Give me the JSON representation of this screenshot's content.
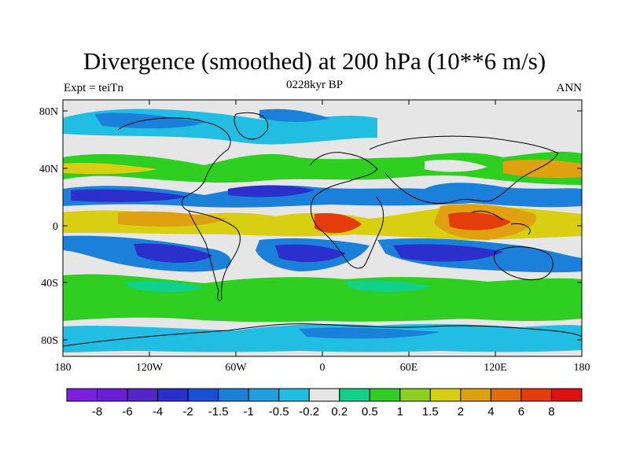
{
  "title": "Divergence (smoothed) at 200 hPa (10**6 m/s)",
  "left_label": "Expt = teiTn",
  "center_label": "0228kyr BP",
  "right_label": "ANN",
  "y_ticks": [
    "80N",
    "40N",
    "0",
    "40S",
    "80S"
  ],
  "x_ticks": [
    "180",
    "120W",
    "60W",
    "0",
    "60E",
    "120E",
    "180"
  ],
  "colorbar": {
    "labels": [
      "-8",
      "-6",
      "-4",
      "-2",
      "-1.5",
      "-1",
      "-0.5",
      "-0.2",
      "0.2",
      "0.5",
      "1",
      "1.5",
      "2",
      "4",
      "6",
      "8"
    ],
    "colors": [
      "#7d1fe0",
      "#6a1fd6",
      "#5424cc",
      "#2b2fcb",
      "#1a50d6",
      "#1a80d9",
      "#1f9fe0",
      "#22bde3",
      "#e6e6e6",
      "#0fd18c",
      "#2fcf22",
      "#8ed021",
      "#d8cf12",
      "#dfa10f",
      "#e56a0c",
      "#e53c0b",
      "#e01010"
    ]
  },
  "colors": {
    "background_field": "#e6e6e6",
    "blue_dark": "#2b2fcb",
    "blue": "#1a80d9",
    "cyan": "#22bde3",
    "green": "#2fcf22",
    "teal": "#0fd18c",
    "yellow": "#d8cf12",
    "orange": "#dfa10f",
    "red": "#e53c0b"
  }
}
